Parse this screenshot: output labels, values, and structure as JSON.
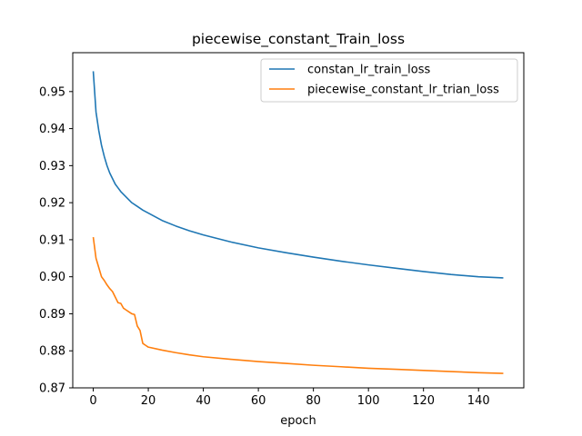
{
  "chart_data": {
    "type": "line",
    "title": "piecewise_constant_Train_loss",
    "xlabel": "epoch",
    "ylabel": "",
    "xlim": [
      -7.45,
      156.45
    ],
    "ylim": [
      0.87,
      0.9605
    ],
    "xticks": [
      0,
      20,
      40,
      60,
      80,
      100,
      120,
      140
    ],
    "yticks": [
      0.87,
      0.88,
      0.89,
      0.9,
      0.91,
      0.92,
      0.93,
      0.94,
      0.95
    ],
    "ytick_labels": [
      "0.87",
      "0.88",
      "0.89",
      "0.90",
      "0.91",
      "0.92",
      "0.93",
      "0.94",
      "0.95"
    ],
    "grid": false,
    "legend_position": "top-right",
    "series": [
      {
        "name": "constan_lr_train_loss",
        "color": "#1f77b4",
        "points": [
          [
            0,
            0.9555
          ],
          [
            1,
            0.9445
          ],
          [
            2,
            0.9395
          ],
          [
            3,
            0.9355
          ],
          [
            4,
            0.9325
          ],
          [
            5,
            0.93
          ],
          [
            6,
            0.928
          ],
          [
            7,
            0.9265
          ],
          [
            8,
            0.925
          ],
          [
            9,
            0.924
          ],
          [
            10,
            0.923
          ],
          [
            12,
            0.9215
          ],
          [
            14,
            0.92
          ],
          [
            16,
            0.919
          ],
          [
            18,
            0.918
          ],
          [
            20,
            0.9172
          ],
          [
            25,
            0.9152
          ],
          [
            30,
            0.9137
          ],
          [
            35,
            0.9124
          ],
          [
            40,
            0.9113
          ],
          [
            50,
            0.9094
          ],
          [
            60,
            0.9078
          ],
          [
            70,
            0.9065
          ],
          [
            80,
            0.9053
          ],
          [
            90,
            0.9042
          ],
          [
            100,
            0.9032
          ],
          [
            110,
            0.9023
          ],
          [
            120,
            0.9014
          ],
          [
            130,
            0.9006
          ],
          [
            140,
            0.9
          ],
          [
            149,
            0.8997
          ]
        ]
      },
      {
        "name": "piecewise_constant_lr_trian_loss",
        "color": "#ff7f0e",
        "points": [
          [
            0,
            0.9107
          ],
          [
            1,
            0.905
          ],
          [
            2,
            0.9025
          ],
          [
            3,
            0.9
          ],
          [
            4,
            0.899
          ],
          [
            5,
            0.8978
          ],
          [
            6,
            0.8968
          ],
          [
            7,
            0.896
          ],
          [
            8,
            0.8945
          ],
          [
            9,
            0.893
          ],
          [
            10,
            0.8928
          ],
          [
            11,
            0.8915
          ],
          [
            12,
            0.891
          ],
          [
            13,
            0.8905
          ],
          [
            14,
            0.89
          ],
          [
            15,
            0.8898
          ],
          [
            16,
            0.8867
          ],
          [
            17,
            0.8855
          ],
          [
            18,
            0.882
          ],
          [
            19,
            0.8815
          ],
          [
            20,
            0.881
          ],
          [
            25,
            0.8802
          ],
          [
            30,
            0.8795
          ],
          [
            35,
            0.8789
          ],
          [
            40,
            0.8784
          ],
          [
            50,
            0.8777
          ],
          [
            60,
            0.8771
          ],
          [
            70,
            0.8766
          ],
          [
            80,
            0.8761
          ],
          [
            90,
            0.8757
          ],
          [
            100,
            0.8753
          ],
          [
            110,
            0.875
          ],
          [
            120,
            0.8747
          ],
          [
            130,
            0.8744
          ],
          [
            140,
            0.8741
          ],
          [
            149,
            0.8739
          ]
        ]
      }
    ]
  }
}
